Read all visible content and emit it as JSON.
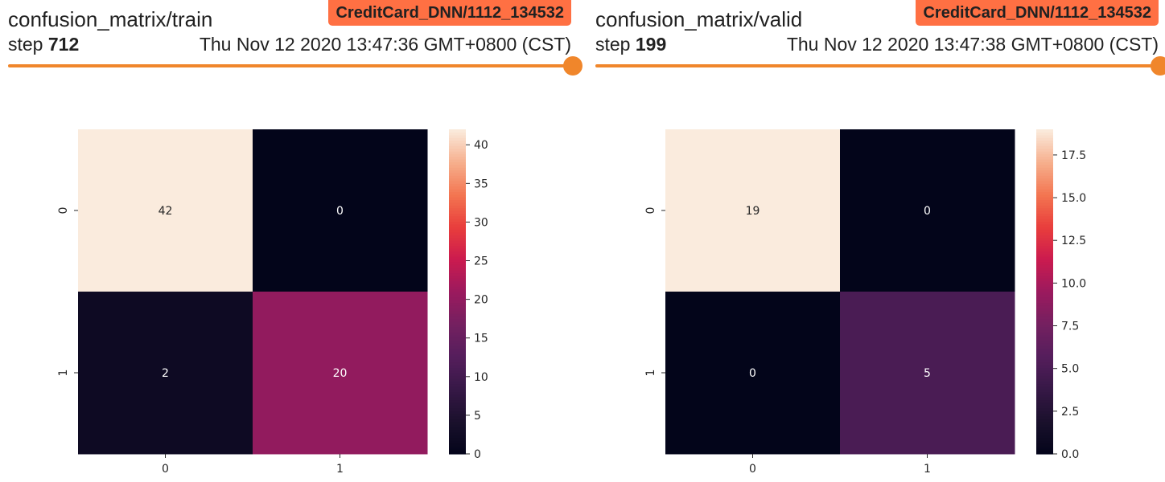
{
  "cards": [
    {
      "title": "confusion_matrix/train",
      "run_badge": "CreditCard_DNN/1112_134532",
      "step_label": "step",
      "step_value": "712",
      "timestamp": "Thu Nov 12 2020 13:47:36 GMT+0800 (CST)",
      "accent_color": "#f0862b",
      "badge_color": "#ff7043"
    },
    {
      "title": "confusion_matrix/valid",
      "run_badge": "CreditCard_DNN/1112_134532",
      "step_label": "step",
      "step_value": "199",
      "timestamp": "Thu Nov 12 2020 13:47:38 GMT+0800 (CST)",
      "accent_color": "#f0862b",
      "badge_color": "#ff7043"
    }
  ],
  "chart_data": [
    {
      "type": "heatmap",
      "title": "",
      "x_categories": [
        "0",
        "1"
      ],
      "y_categories": [
        "0",
        "1"
      ],
      "values": [
        [
          42,
          0
        ],
        [
          2,
          20
        ]
      ],
      "colorbar": {
        "range": [
          0,
          42
        ],
        "ticks": [
          "0",
          "5",
          "10",
          "15",
          "20",
          "25",
          "30",
          "35",
          "40"
        ],
        "tick_values": [
          0,
          5,
          10,
          15,
          20,
          25,
          30,
          35,
          40
        ],
        "colormap": "rocket"
      }
    },
    {
      "type": "heatmap",
      "title": "",
      "x_categories": [
        "0",
        "1"
      ],
      "y_categories": [
        "0",
        "1"
      ],
      "values": [
        [
          19,
          0
        ],
        [
          0,
          5
        ]
      ],
      "colorbar": {
        "range": [
          0,
          19
        ],
        "ticks": [
          "0.0",
          "2.5",
          "5.0",
          "7.5",
          "10.0",
          "12.5",
          "15.0",
          "17.5"
        ],
        "tick_values": [
          0,
          2.5,
          5,
          7.5,
          10,
          12.5,
          15,
          17.5
        ],
        "colormap": "rocket"
      }
    }
  ]
}
